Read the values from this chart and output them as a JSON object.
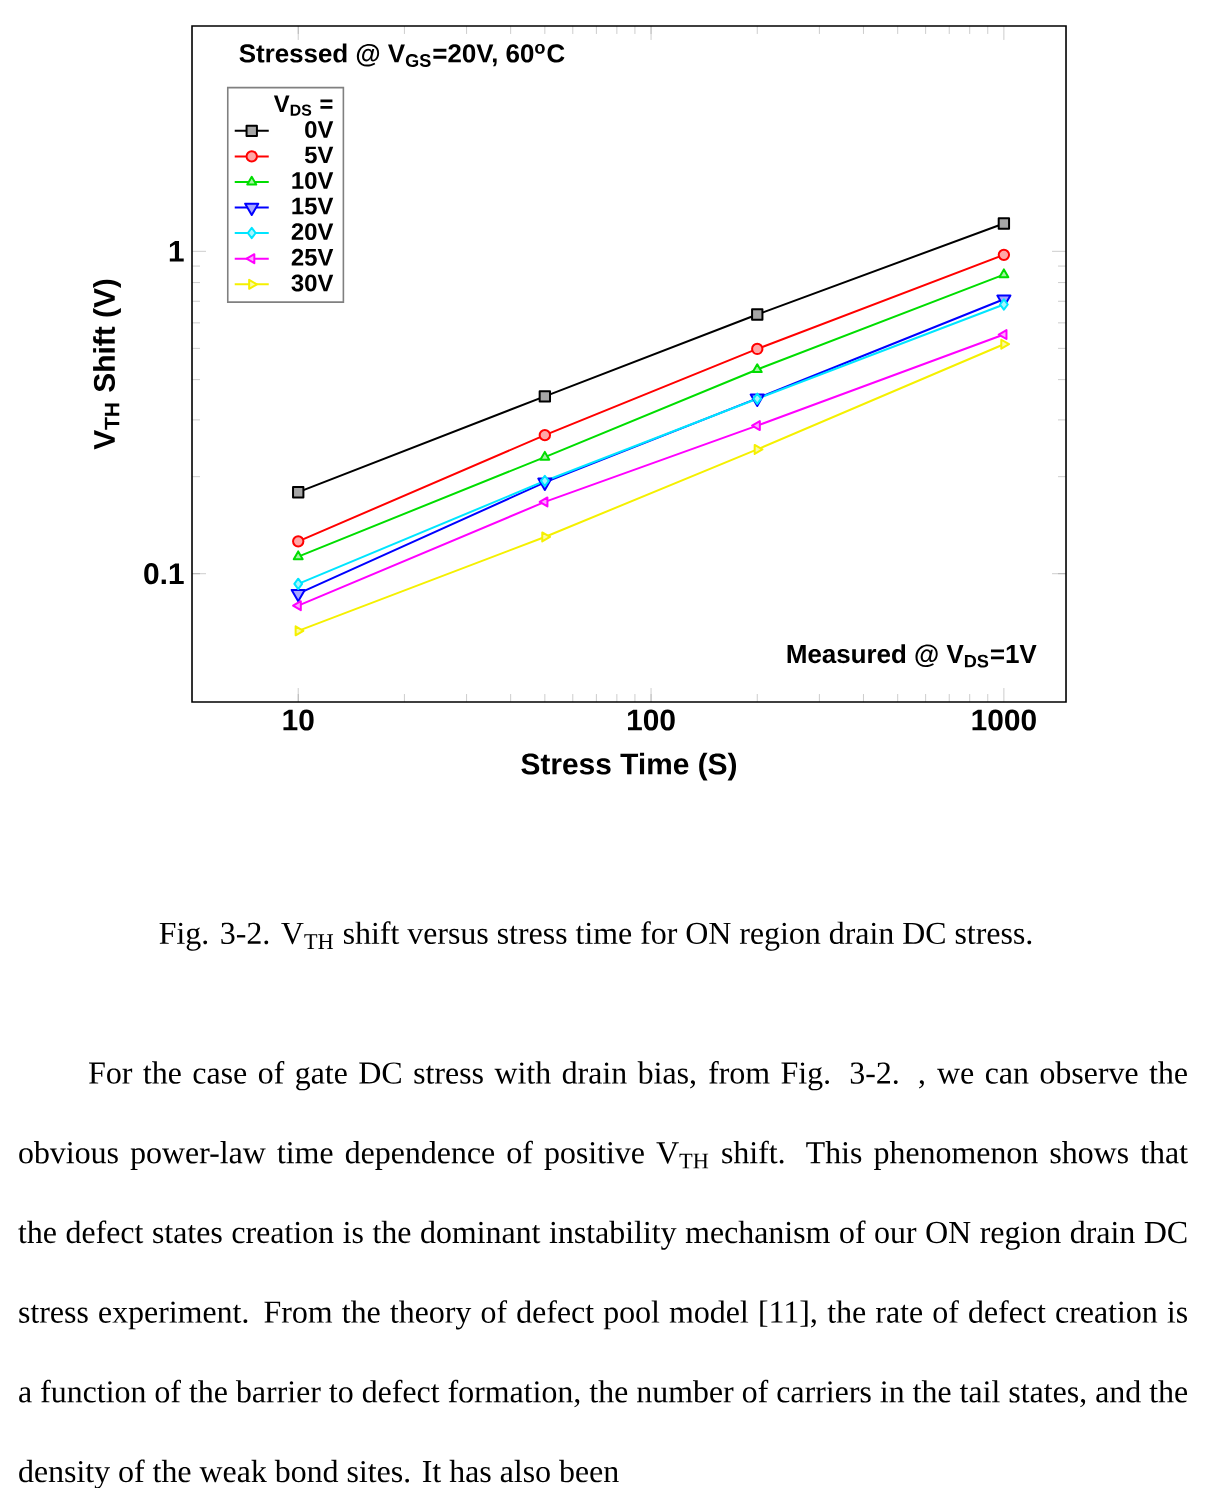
{
  "chart_data": {
    "type": "line",
    "title": "Stressed @ V$_{GS}$=20V, 60$^{o}$C",
    "xlabel": "Stress Time (S)",
    "ylabel": "V$_{TH}$ Shift (V)",
    "legend_title": "V$_{DS}$ =",
    "x": [
      10,
      50,
      200,
      1000
    ],
    "series": [
      {
        "name": "0V",
        "color": "#000000",
        "marker": "square",
        "values": [
          0.179,
          0.355,
          0.637,
          1.22
        ]
      },
      {
        "name": "5V",
        "color": "#ff0000",
        "marker": "circle",
        "values": [
          0.126,
          0.269,
          0.498,
          0.975
        ]
      },
      {
        "name": "10V",
        "color": "#00dd00",
        "marker": "triangle",
        "values": [
          0.113,
          0.23,
          0.43,
          0.847
        ]
      },
      {
        "name": "15V",
        "color": "#0000ff",
        "marker": "triangle-down",
        "values": [
          0.0867,
          0.192,
          0.35,
          0.71
        ]
      },
      {
        "name": "20V",
        "color": "#00e5ff",
        "marker": "diamond",
        "values": [
          0.093,
          0.194,
          0.349,
          0.684
        ]
      },
      {
        "name": "25V",
        "color": "#ff00ff",
        "marker": "triangle-left",
        "values": [
          0.0796,
          0.167,
          0.288,
          0.552
        ]
      },
      {
        "name": "30V",
        "color": "#f5f000",
        "marker": "triangle-right",
        "values": [
          0.0665,
          0.13,
          0.243,
          0.515
        ]
      }
    ],
    "log": "xy",
    "xlim": [
      5,
      1500
    ],
    "ylim": [
      0.04,
      5
    ],
    "xticks": [
      10,
      100,
      1000
    ],
    "yticks": [
      0.1,
      1
    ],
    "legend": "top left",
    "line_style": "solid",
    "annotations": [
      "Measured @ V$_{DS}$=1V",
      "Fig. 3-2. V$_{TH}$ shift versus stress time for ON region drain DC stress.",
      "For the case of gate DC stress with drain bias, from Fig. 3-2. , we can observe the obvious power-law time dependence of positive V$_{TH}$ shift. This phenomenon shows that the defect states creation is the dominant instability mechanism of our ON region drain DC stress experiment. From the theory of defect pool model [11], the rate of defect creation is a function of the barrier to defect formation, the number of carriers in the tail states, and the density of the weak bond sites. It has also been"
    ]
  }
}
